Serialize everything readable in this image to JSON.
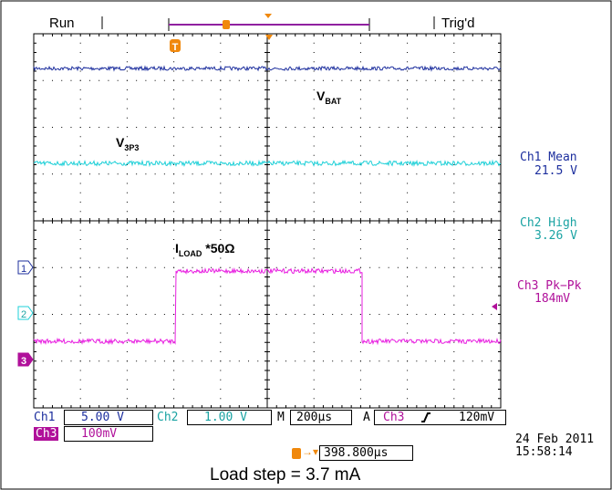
{
  "status": {
    "run": "Run",
    "trig": "Trig'd"
  },
  "trace_labels": {
    "vbat_main": "V",
    "vbat_sub": "BAT",
    "v3p3_main": "V",
    "v3p3_sub": "3P3",
    "iload_main": "I",
    "iload_sub": "LOAD",
    "iload_suffix": " *50Ω"
  },
  "measurements": [
    {
      "label": "Ch1 Mean",
      "value": "21.5 V",
      "color": "#1d2f9e"
    },
    {
      "label": "Ch2 High",
      "value": "3.26 V",
      "color": "#1aa3a3"
    },
    {
      "label": "Ch3 Pk−Pk",
      "value": "184mV",
      "color": "#b0109a"
    }
  ],
  "channel_markers": {
    "ch1": "1",
    "ch2": "2",
    "ch3": "3"
  },
  "trigger_marker": "T",
  "settings": {
    "ch1_label": "Ch1",
    "ch1_scale": "5.00 V",
    "ch2_label": "Ch2",
    "ch2_scale": "1.00 V",
    "timebase_prefix": "M",
    "timebase": "200µs",
    "trigger_mode": "A",
    "trigger_channel": "Ch3",
    "trigger_level": "120mV",
    "ch3_label": "Ch3",
    "ch3_scale": "100mV",
    "trigger_position": "398.800µs"
  },
  "datetime": {
    "date": "24 Feb  2011",
    "time": "15:58:14"
  },
  "caption": "Load step = 3.7 mA",
  "colors": {
    "ch1": "#1d2f9e",
    "ch2": "#1fd0d8",
    "ch3": "#e81de0",
    "ch2_text": "#1aa3a3",
    "ch3_text": "#b0109a",
    "trigger": "#f0880c",
    "window": "#9020a0"
  }
}
